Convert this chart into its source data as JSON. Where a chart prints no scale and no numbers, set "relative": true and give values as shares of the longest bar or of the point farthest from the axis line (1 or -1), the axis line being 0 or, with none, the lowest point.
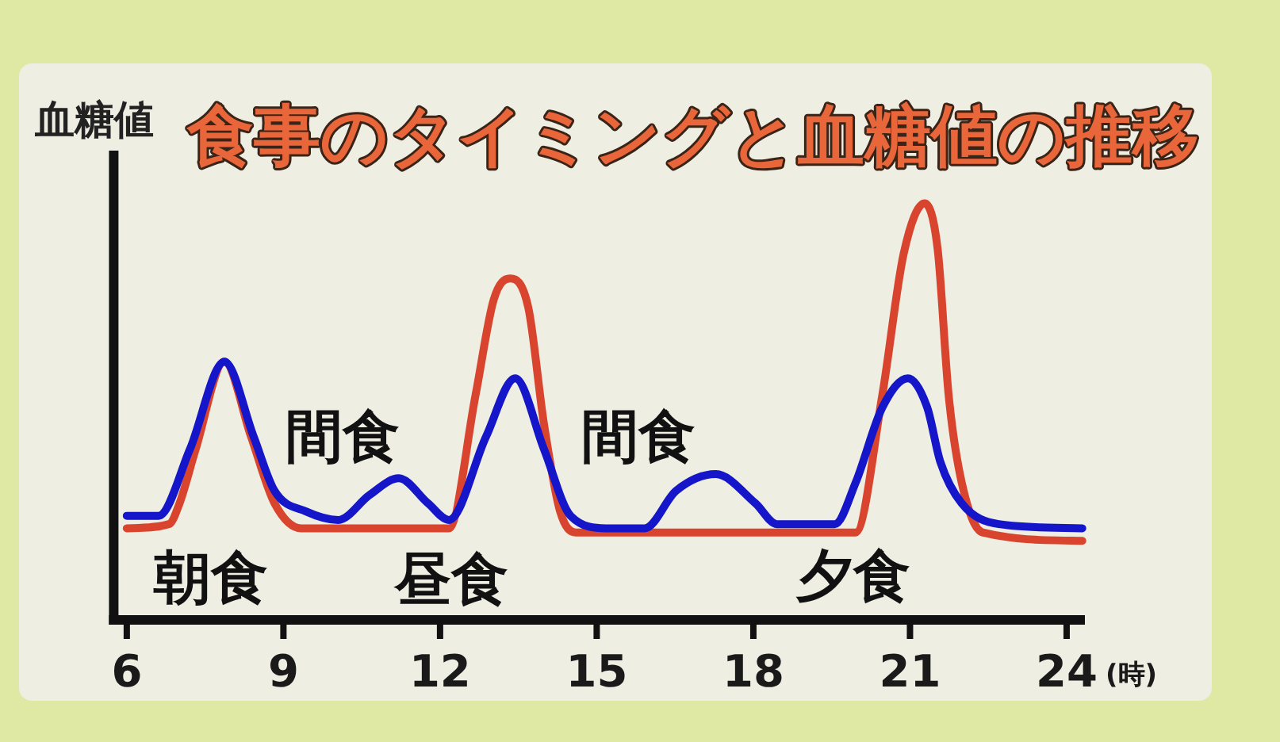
{
  "chart_data": {
    "type": "line",
    "title": "食事のタイミングと血糖値の推移",
    "ylabel": "血糖値",
    "xlabel": "(時)",
    "relative": true,
    "xlim": [
      5.75,
      24.35
    ],
    "xticks": [
      6,
      9,
      12,
      15,
      18,
      21,
      24
    ],
    "line_style": "solid",
    "series": [
      {
        "color": "#d9442e",
        "x": [
          6,
          6.81,
          7.01,
          7.32,
          7.87,
          8.38,
          8.83,
          9.34,
          12.17,
          12.68,
          13.03,
          13.34,
          13.69,
          13.99,
          14.3,
          14.6,
          19.96,
          20.47,
          20.88,
          21.28,
          21.53,
          21.74,
          21.99,
          22.39,
          24.3
        ],
        "values": [
          0.22,
          0.23,
          0.28,
          0.41,
          0.62,
          0.44,
          0.28,
          0.22,
          0.22,
          0.54,
          0.77,
          0.82,
          0.75,
          0.47,
          0.26,
          0.21,
          0.21,
          0.54,
          0.88,
          1,
          0.89,
          0.54,
          0.33,
          0.21,
          0.19
        ]
      },
      {
        "color": "#1515c9",
        "x": [
          6,
          6.61,
          7.21,
          7.87,
          8.43,
          8.83,
          9.44,
          10.05,
          10.65,
          11.21,
          11.77,
          12.17,
          12.88,
          13.44,
          13.99,
          14.5,
          15.21,
          15.92,
          16.52,
          17.28,
          18.04,
          18.45,
          19.56,
          19.96,
          20.47,
          20.96,
          21.33,
          21.58,
          21.99,
          22.7,
          24.3
        ],
        "values": [
          0.25,
          0.25,
          0.41,
          0.62,
          0.44,
          0.31,
          0.26,
          0.24,
          0.3,
          0.34,
          0.28,
          0.24,
          0.44,
          0.58,
          0.41,
          0.25,
          0.22,
          0.22,
          0.31,
          0.35,
          0.28,
          0.23,
          0.23,
          0.33,
          0.51,
          0.58,
          0.51,
          0.38,
          0.28,
          0.23,
          0.22
        ]
      }
    ],
    "annotations": [
      "朝食",
      "間食",
      "昼食",
      "間食",
      "夕食"
    ]
  }
}
